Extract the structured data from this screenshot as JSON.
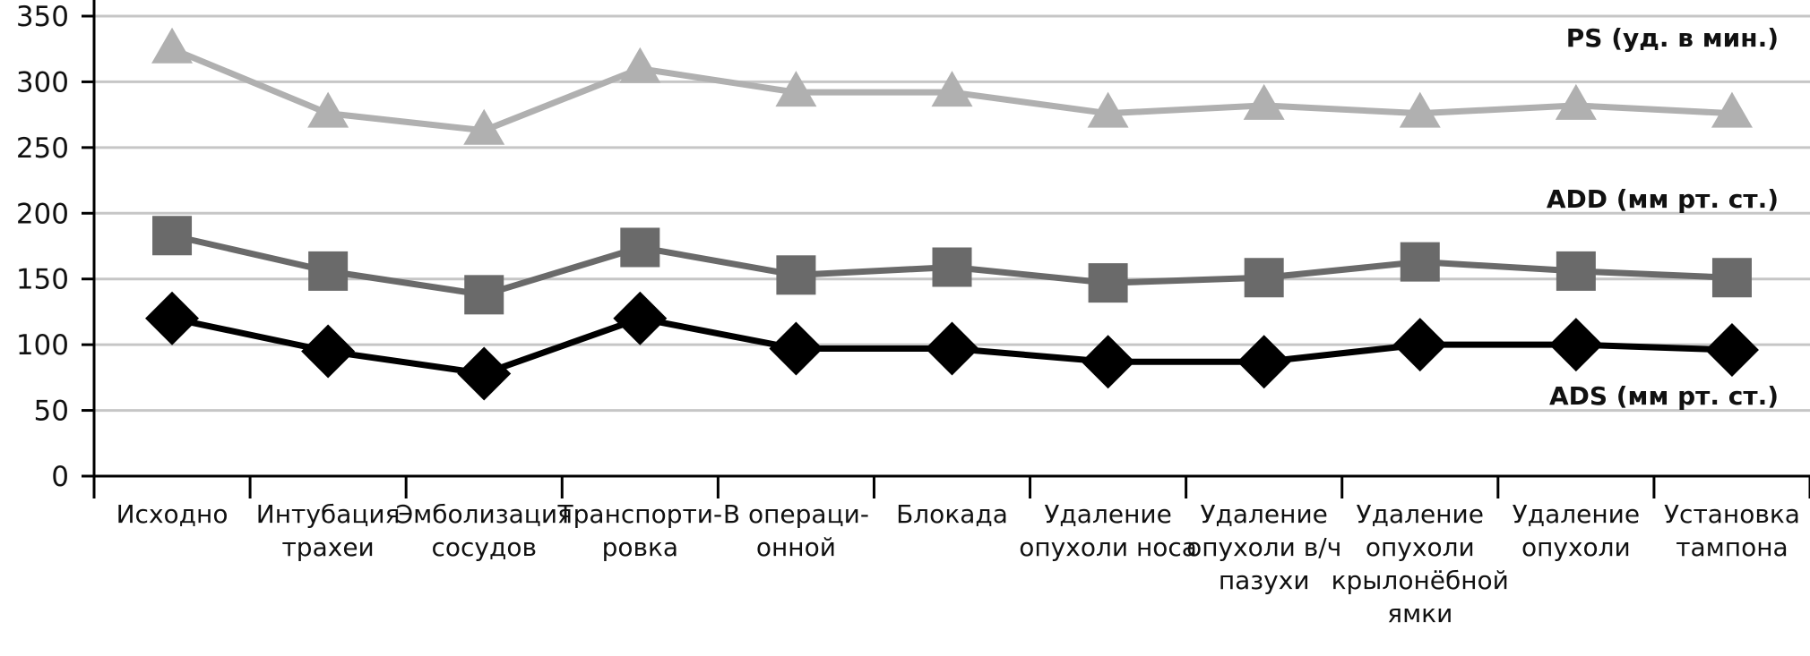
{
  "chart_data": {
    "type": "line",
    "title": "",
    "xlabel": "",
    "ylabel": "",
    "ylim": [
      0,
      350
    ],
    "yticks": [
      0,
      50,
      100,
      150,
      200,
      250,
      300,
      350
    ],
    "grid": true,
    "categories": [
      [
        "Исходно"
      ],
      [
        "Интубация",
        "трахеи"
      ],
      [
        "Эмболизация",
        "сосудов"
      ],
      [
        "Транспорти-",
        "ровка"
      ],
      [
        "В операци-",
        "онной"
      ],
      [
        "Блокада"
      ],
      [
        "Удаление",
        "опухоли носа"
      ],
      [
        "Удаление",
        "опухоли в/ч",
        "пазухи"
      ],
      [
        "Удаление",
        "опухоли",
        "крылонёбной",
        "ямки"
      ],
      [
        "Удаление",
        "опухоли"
      ],
      [
        "Установка",
        "тампона"
      ]
    ],
    "series": [
      {
        "name": "PS (уд. в мин.)",
        "marker": "triangle",
        "color": "#b0b0b0",
        "values": [
          325,
          276,
          263,
          310,
          292,
          292,
          276,
          282,
          276,
          282,
          276
        ]
      },
      {
        "name": "ADD (мм рт. ст.)",
        "marker": "square",
        "color": "#6a6a6a",
        "values": [
          183,
          156,
          138,
          174,
          153,
          159,
          147,
          151,
          163,
          156,
          151
        ]
      },
      {
        "name": "ADS (мм рт. ст.)",
        "marker": "diamond",
        "color": "#000000",
        "values": [
          120,
          95,
          78,
          120,
          97,
          97,
          87,
          87,
          100,
          100,
          96
        ]
      }
    ]
  }
}
